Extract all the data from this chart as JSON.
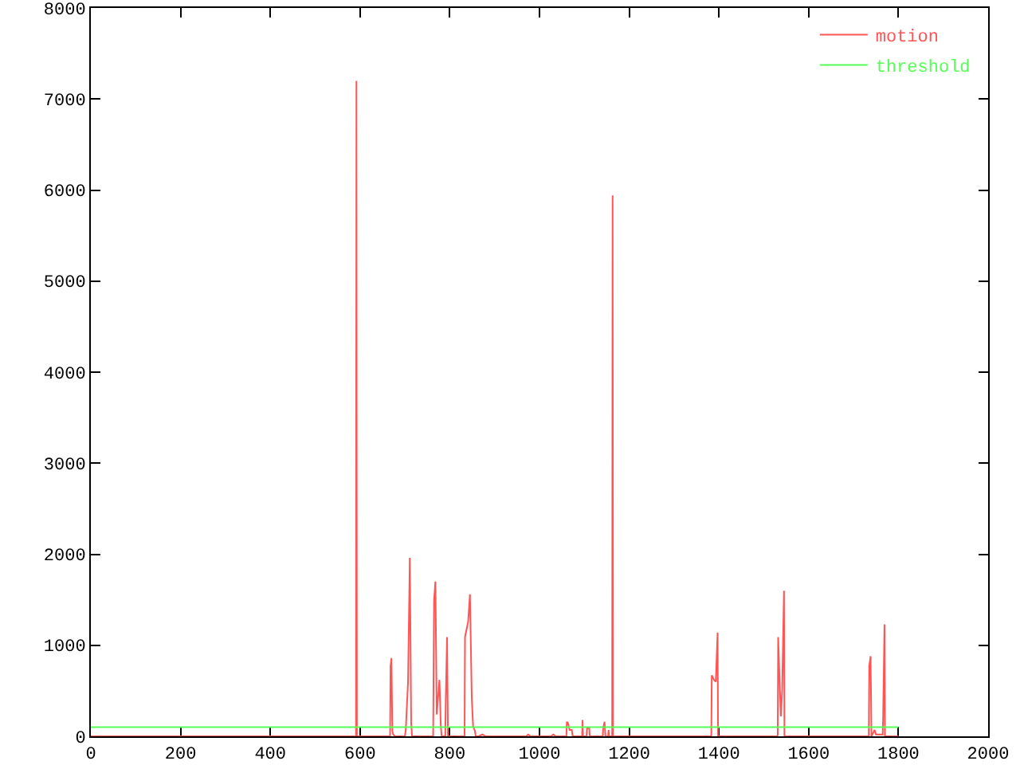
{
  "chart_data": {
    "type": "line",
    "series": [
      {
        "name": "motion",
        "color": "#ff5555",
        "x": [
          0,
          591,
          592,
          593,
          667,
          668,
          670,
          672,
          674,
          678,
          700,
          702,
          707,
          711,
          714,
          716,
          763,
          765,
          768,
          771,
          777,
          780,
          782,
          790,
          791,
          794,
          796,
          833,
          834,
          841,
          845,
          849,
          852,
          856,
          858,
          864,
          873,
          880,
          970,
          975,
          980,
          1025,
          1031,
          1036,
          1060,
          1061,
          1064,
          1067,
          1072,
          1074,
          1095,
          1096,
          1097,
          1105,
          1106,
          1111,
          1112,
          1141,
          1142,
          1145,
          1147,
          1153,
          1154,
          1155,
          1162,
          1163,
          1164,
          1383,
          1384,
          1389,
          1393,
          1397,
          1398,
          1530,
          1531,
          1532,
          1535,
          1538,
          1541,
          1545,
          1546,
          1734,
          1735,
          1738,
          1740,
          1747,
          1750,
          1765,
          1766,
          1769,
          1770,
          1800
        ],
        "values": [
          0,
          0,
          7200,
          0,
          0,
          770,
          860,
          60,
          20,
          0,
          0,
          70,
          600,
          1960,
          150,
          0,
          0,
          1490,
          1700,
          240,
          620,
          120,
          0,
          0,
          370,
          1090,
          0,
          0,
          1090,
          1260,
          1560,
          440,
          110,
          60,
          0,
          0,
          20,
          0,
          0,
          20,
          0,
          0,
          20,
          0,
          0,
          160,
          140,
          70,
          70,
          0,
          0,
          180,
          0,
          0,
          90,
          90,
          0,
          0,
          90,
          160,
          0,
          0,
          70,
          0,
          0,
          5940,
          0,
          0,
          670,
          620,
          600,
          1140,
          0,
          0,
          20,
          1090,
          630,
          220,
          510,
          1600,
          0,
          0,
          770,
          880,
          0,
          70,
          20,
          20,
          230,
          1230,
          0,
          0
        ]
      },
      {
        "name": "threshold",
        "color": "#55ff55",
        "x": [
          0,
          1800
        ],
        "values": [
          100,
          100
        ]
      }
    ],
    "xlim": [
      0,
      2000
    ],
    "xticks": [
      0,
      200,
      400,
      600,
      800,
      1000,
      1200,
      1400,
      1600,
      1800,
      2000
    ],
    "ylim": [
      0,
      8000
    ],
    "yticks": [
      0,
      1000,
      2000,
      3000,
      4000,
      5000,
      6000,
      7000,
      8000
    ],
    "grid": false,
    "legend": "top right",
    "marker": "none",
    "line_style": "solid"
  }
}
